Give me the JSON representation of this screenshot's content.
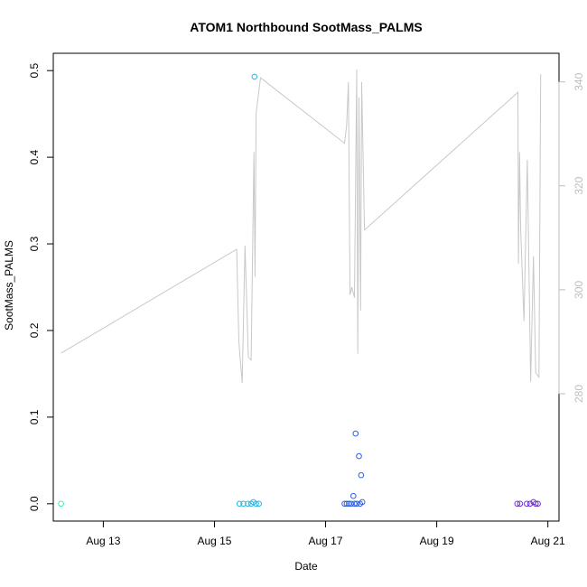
{
  "chart_data": {
    "type": "scatter",
    "title": "ATOM1 Northbound SootMass_PALMS",
    "xlabel": "Date",
    "ylabel": "SootMass_PALMS",
    "y2label": "",
    "xlim": [
      12.1,
      21.2
    ],
    "ylim": [
      -0.02,
      0.52
    ],
    "y2lim": [
      255.5,
      345.5
    ],
    "x_ticks": [
      {
        "value": 13,
        "label": "Aug 13"
      },
      {
        "value": 15,
        "label": "Aug 15"
      },
      {
        "value": 17,
        "label": "Aug 17"
      },
      {
        "value": 19,
        "label": "Aug 19"
      },
      {
        "value": 21,
        "label": "Aug 21"
      }
    ],
    "y_ticks": [
      {
        "value": 0.0,
        "label": "0.0"
      },
      {
        "value": 0.1,
        "label": "0.1"
      },
      {
        "value": 0.2,
        "label": "0.2"
      },
      {
        "value": 0.3,
        "label": "0.3"
      },
      {
        "value": 0.4,
        "label": "0.4"
      },
      {
        "value": 0.5,
        "label": "0.5"
      }
    ],
    "y2_ticks": [
      {
        "value": 280,
        "label": "280"
      },
      {
        "value": 300,
        "label": "300"
      },
      {
        "value": 320,
        "label": "320"
      },
      {
        "value": 340,
        "label": "340"
      }
    ],
    "colors": {
      "secondary_line": "#c8c8c8",
      "right_axis": "#bebebe",
      "axis": "#000000"
    },
    "grid": false,
    "series": [
      {
        "kind": "points",
        "points": [
          {
            "x": 12.24,
            "y": 0.0,
            "color": "#40e8c0"
          },
          {
            "x": 15.45,
            "y": 0.0,
            "color": "#29b6e8"
          },
          {
            "x": 15.52,
            "y": 0.0,
            "color": "#29b6e8"
          },
          {
            "x": 15.6,
            "y": 0.0,
            "color": "#29b6e8"
          },
          {
            "x": 15.66,
            "y": 0.0,
            "color": "#29b6e8"
          },
          {
            "x": 15.7,
            "y": 0.002,
            "color": "#29b6e8"
          },
          {
            "x": 15.72,
            "y": 0.493,
            "color": "#29b6e8"
          },
          {
            "x": 15.75,
            "y": 0.0,
            "color": "#29b6e8"
          },
          {
            "x": 15.8,
            "y": 0.0,
            "color": "#29b6e8"
          },
          {
            "x": 17.34,
            "y": 0.0,
            "color": "#2c5ee8"
          },
          {
            "x": 17.38,
            "y": 0.0,
            "color": "#2c5ee8"
          },
          {
            "x": 17.42,
            "y": 0.0,
            "color": "#2c5ee8"
          },
          {
            "x": 17.46,
            "y": 0.0,
            "color": "#2c5ee8"
          },
          {
            "x": 17.5,
            "y": 0.009,
            "color": "#2c5ee8"
          },
          {
            "x": 17.52,
            "y": 0.0,
            "color": "#2c5ee8"
          },
          {
            "x": 17.54,
            "y": 0.081,
            "color": "#2c5ee8"
          },
          {
            "x": 17.56,
            "y": 0.0,
            "color": "#2c5ee8"
          },
          {
            "x": 17.6,
            "y": 0.055,
            "color": "#2c5ee8"
          },
          {
            "x": 17.62,
            "y": 0.0,
            "color": "#2c5ee8"
          },
          {
            "x": 17.64,
            "y": 0.033,
            "color": "#2c5ee8"
          },
          {
            "x": 17.66,
            "y": 0.002,
            "color": "#2c5ee8"
          },
          {
            "x": 20.45,
            "y": 0.0,
            "color": "#7030d0"
          },
          {
            "x": 20.5,
            "y": 0.0,
            "color": "#7030d0"
          },
          {
            "x": 20.62,
            "y": 0.0,
            "color": "#7030d0"
          },
          {
            "x": 20.68,
            "y": 0.0,
            "color": "#7030d0"
          },
          {
            "x": 20.74,
            "y": 0.002,
            "color": "#7030d0"
          },
          {
            "x": 20.78,
            "y": 0.0,
            "color": "#7030d0"
          },
          {
            "x": 20.82,
            "y": 0.0,
            "color": "#7030d0"
          }
        ]
      },
      {
        "kind": "line",
        "axis": "right",
        "color": "#c8c8c8",
        "x": [
          12.24,
          15.4,
          15.44,
          15.5,
          15.55,
          15.61,
          15.66,
          15.71,
          15.73,
          15.75,
          15.83,
          17.34,
          17.38,
          17.41,
          17.44,
          17.47,
          17.52,
          17.56,
          17.58,
          17.6,
          17.63,
          17.65,
          17.7,
          20.46,
          20.47,
          20.49,
          20.51,
          20.57,
          20.63,
          20.69,
          20.74,
          20.78,
          20.84,
          20.87
        ],
        "y": [
          287.8,
          307.8,
          290.0,
          282.1,
          308.5,
          287.0,
          286.5,
          326.5,
          302.5,
          334.0,
          340.8,
          328.2,
          331.8,
          340.0,
          299.0,
          300.5,
          298.5,
          342.4,
          287.7,
          337.0,
          296.0,
          340.0,
          311.5,
          338.0,
          305.0,
          326.5,
          312.0,
          294.0,
          325.0,
          282.3,
          306.5,
          284.0,
          283.2,
          341.5
        ]
      }
    ]
  }
}
